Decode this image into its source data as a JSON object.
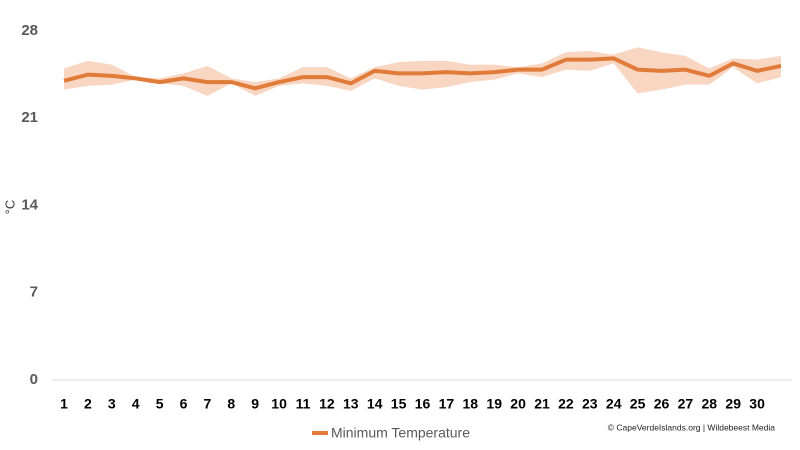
{
  "chart_data": {
    "type": "line",
    "y_label": "°C",
    "categories": [
      1,
      2,
      3,
      4,
      5,
      6,
      7,
      8,
      9,
      10,
      11,
      12,
      13,
      14,
      15,
      16,
      17,
      18,
      19,
      20,
      21,
      22,
      23,
      24,
      25,
      26,
      27,
      28,
      29,
      30,
      null
    ],
    "series": [
      {
        "name": "Minimum Temperature",
        "color": "#e07b39",
        "values": [
          24.0,
          24.5,
          24.4,
          24.2,
          23.9,
          24.2,
          23.9,
          23.9,
          23.4,
          23.9,
          24.3,
          24.3,
          23.8,
          24.8,
          24.6,
          24.6,
          24.7,
          24.6,
          24.7,
          24.9,
          24.9,
          25.7,
          25.7,
          25.8,
          24.9,
          24.8,
          24.9,
          24.4,
          25.4,
          24.8,
          25.2
        ]
      }
    ],
    "band": {
      "color": "#f9d6c2",
      "upper": [
        25.0,
        25.6,
        25.3,
        24.3,
        24.2,
        24.6,
        25.2,
        24.2,
        23.9,
        24.2,
        25.1,
        25.1,
        24.2,
        25.1,
        25.5,
        25.6,
        25.6,
        25.3,
        25.3,
        25.1,
        25.4,
        26.3,
        26.4,
        26.1,
        26.7,
        26.3,
        26.0,
        25.0,
        25.8,
        25.7,
        26.0
      ],
      "lower": [
        23.3,
        23.6,
        23.7,
        24.1,
        23.8,
        23.6,
        22.8,
        23.8,
        22.8,
        23.6,
        23.8,
        23.6,
        23.2,
        24.2,
        23.6,
        23.3,
        23.5,
        23.9,
        24.1,
        24.6,
        24.3,
        24.9,
        24.8,
        25.4,
        23.0,
        23.3,
        23.7,
        23.7,
        25.1,
        23.8,
        24.3
      ]
    },
    "ylim": [
      0,
      28
    ],
    "yticks": [
      0,
      7,
      14,
      21,
      28
    ],
    "credit": "© CapeVerdeIslands.org | Wildebeest Media"
  }
}
